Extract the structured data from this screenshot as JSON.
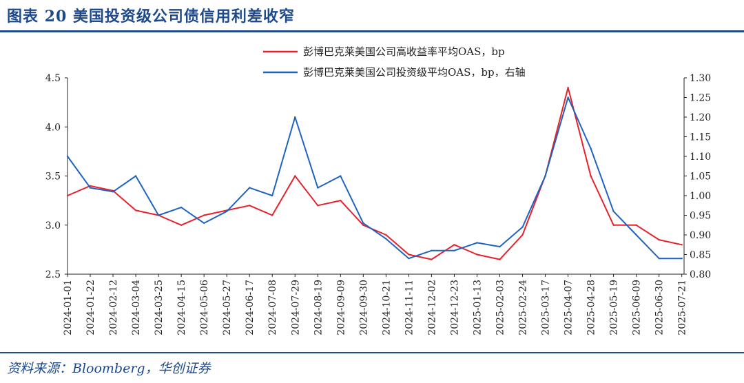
{
  "header": {
    "title": "图表 20    美国投资级公司债信用利差收窄",
    "source": "资料来源：Bloomberg，华创证券"
  },
  "colors": {
    "hy": "#e8202a",
    "ig": "#1e63c0",
    "brand": "#1e4a8c"
  },
  "chart_data": {
    "type": "line",
    "categories": [
      "2024-01-01",
      "2024-01-22",
      "2024-02-12",
      "2024-03-04",
      "2024-03-25",
      "2024-04-15",
      "2024-05-06",
      "2024-05-27",
      "2024-06-17",
      "2024-07-08",
      "2024-07-29",
      "2024-08-19",
      "2024-09-09",
      "2024-09-30",
      "2024-10-21",
      "2024-11-11",
      "2024-12-02",
      "2024-12-23",
      "2025-01-13",
      "2025-02-03",
      "2025-02-24",
      "2025-03-17",
      "2025-04-07",
      "2025-04-28",
      "2025-05-19",
      "2025-06-09",
      "2025-06-30",
      "2025-07-21"
    ],
    "left_axis": {
      "ylim": [
        2.5,
        4.5
      ],
      "ticks": [
        "2.5",
        "3.0",
        "3.5",
        "4.0",
        "4.5"
      ]
    },
    "right_axis": {
      "ylim": [
        0.8,
        1.3
      ],
      "ticks": [
        "0.80",
        "0.85",
        "0.90",
        "0.95",
        "1.00",
        "1.05",
        "1.10",
        "1.15",
        "1.20",
        "1.25",
        "1.30"
      ]
    },
    "series": [
      {
        "name": "彭博巴克莱美国公司高收益率平均OAS，bp",
        "axis": "left",
        "values": [
          3.3,
          3.4,
          3.35,
          3.15,
          3.1,
          3.0,
          3.1,
          3.15,
          3.2,
          3.1,
          3.5,
          3.2,
          3.25,
          3.0,
          2.9,
          2.7,
          2.65,
          2.8,
          2.7,
          2.65,
          2.9,
          3.5,
          4.4,
          3.5,
          3.0,
          3.0,
          2.85,
          2.8
        ]
      },
      {
        "name": "彭博巴克莱美国公司投资级平均OAS，bp，右轴",
        "axis": "right",
        "values": [
          1.1,
          1.02,
          1.01,
          1.05,
          0.95,
          0.97,
          0.93,
          0.96,
          1.02,
          1.0,
          1.2,
          1.02,
          1.05,
          0.93,
          0.89,
          0.84,
          0.86,
          0.86,
          0.88,
          0.87,
          0.92,
          1.05,
          1.25,
          1.12,
          0.96,
          0.9,
          0.84,
          0.84
        ]
      }
    ]
  }
}
